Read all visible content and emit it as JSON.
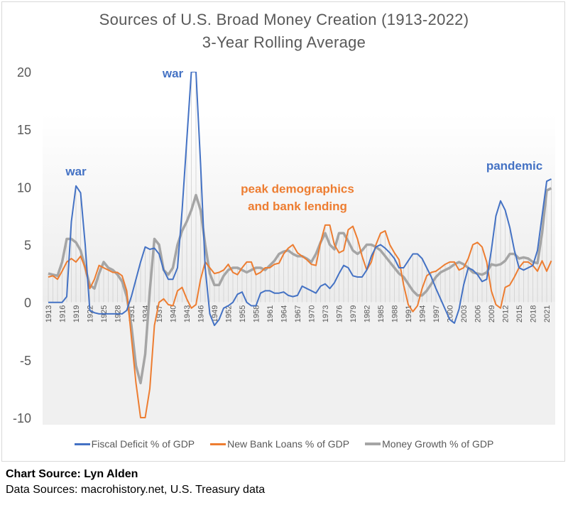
{
  "chart_data": {
    "type": "line",
    "title": "Sources of U.S. Broad Money Creation (1913-2022)",
    "subtitle": "3-Year Rolling Average",
    "xlabel": "",
    "ylabel": "",
    "ylim": [
      -10,
      20
    ],
    "yticks": [
      "20",
      "15",
      "10",
      "5",
      "0",
      "-5",
      "-10"
    ],
    "x_start": 1913,
    "x_end": 2022,
    "xtick_labels": [
      "1913",
      "1916",
      "1919",
      "1922",
      "1925",
      "1928",
      "1931",
      "1934",
      "1937",
      "1940",
      "1943",
      "1946",
      "1949",
      "1952",
      "1955",
      "1958",
      "1961",
      "1964",
      "1967",
      "1970",
      "1973",
      "1976",
      "1979",
      "1982",
      "1985",
      "1988",
      "1991",
      "1994",
      "1997",
      "2000",
      "2003",
      "2006",
      "2009",
      "2012",
      "2015",
      "2018",
      "2021"
    ],
    "legend_placement": "bottom",
    "series": [
      {
        "name": "Fiscal Deficit % of GDP",
        "color": "#4472c4",
        "width": 2,
        "values": [
          0,
          0,
          0,
          0,
          0.5,
          7,
          10.1,
          9.5,
          5,
          -0.7,
          -0.9,
          -1,
          -1,
          -1,
          -1,
          -1,
          -1,
          -0.7,
          0.5,
          2,
          3.5,
          4.8,
          4.6,
          4.7,
          4.2,
          2.8,
          2,
          2,
          3,
          8,
          14,
          20,
          20,
          12,
          3,
          -1,
          -2,
          -1.5,
          -0.5,
          -0.3,
          0,
          0.7,
          0.9,
          0,
          -0.3,
          -0.3,
          0.8,
          1,
          1,
          0.8,
          0.8,
          0.9,
          0.6,
          0.5,
          0.6,
          1.4,
          1.2,
          1,
          0.8,
          1.4,
          1.6,
          1.2,
          1.7,
          2.5,
          3.2,
          3,
          2.3,
          2.2,
          2.2,
          2.8,
          4,
          4.8,
          5,
          4.7,
          4.3,
          3.8,
          3,
          3,
          3.6,
          4.2,
          4.2,
          3.8,
          3,
          2.2,
          1.2,
          0.3,
          -0.6,
          -1.5,
          -1.8,
          -0.6,
          1.5,
          3,
          2.8,
          2.4,
          1.8,
          2,
          4.5,
          7.5,
          8.8,
          8,
          6.5,
          4.5,
          3,
          2.8,
          3,
          3.2,
          4.5,
          7.5,
          10.5,
          10.7
        ]
      },
      {
        "name": "New Bank Loans % of GDP",
        "color": "#ed7d31",
        "width": 2,
        "values": [
          2.2,
          2.3,
          2,
          2.7,
          3.5,
          3.8,
          3.5,
          4,
          3,
          1.2,
          2,
          3.2,
          3,
          2.8,
          2.6,
          2.6,
          2.3,
          1,
          -3,
          -7,
          -10,
          -10,
          -7.5,
          -2,
          0,
          0.3,
          -0.2,
          -0.3,
          1,
          1.3,
          0.3,
          -0.5,
          -0.2,
          2,
          3.5,
          3,
          2.5,
          2.6,
          2.8,
          3.3,
          2.6,
          2.4,
          3,
          3.5,
          3.5,
          2.4,
          2.6,
          3,
          3,
          3.3,
          3.4,
          4.2,
          4.7,
          5,
          4.3,
          4,
          3.7,
          3.3,
          3.2,
          5.2,
          6.7,
          6.7,
          5,
          4.3,
          4.5,
          6.3,
          6.6,
          5.5,
          4,
          2.8,
          3.5,
          5,
          6,
          6.2,
          5,
          4.3,
          3.7,
          1.5,
          -0.2,
          -0.8,
          -0.3,
          1.2,
          2.3,
          2.6,
          2.7,
          3,
          3.3,
          3.5,
          3.5,
          2.8,
          3,
          3.8,
          5,
          5.2,
          4.8,
          3.5,
          1,
          -0.2,
          -0.5,
          1.3,
          1.5,
          2.2,
          3,
          3.5,
          3.5,
          3.2,
          2.7,
          3.6,
          2.7,
          3.6
        ]
      },
      {
        "name": "Money Growth % of GDP",
        "color": "#a5a5a5",
        "width": 3.5,
        "values": [
          2.5,
          2.4,
          2.3,
          3.5,
          5.5,
          5.5,
          5.2,
          4.5,
          3,
          1.5,
          1.2,
          2.5,
          3.5,
          3,
          2.8,
          2.4,
          1.8,
          0.5,
          -2,
          -5.5,
          -7,
          -4.5,
          1,
          5.5,
          5,
          2.8,
          2.4,
          3,
          5,
          6.2,
          7,
          8,
          9.3,
          8,
          5,
          2.5,
          1.5,
          1.5,
          2.3,
          2.8,
          3,
          3,
          2.8,
          2.6,
          2.8,
          3,
          3,
          2.8,
          3.2,
          3.6,
          4.2,
          4.4,
          4.5,
          4.2,
          4,
          4,
          3.8,
          3.5,
          4.2,
          5.2,
          6,
          5,
          4.6,
          6,
          6,
          5.3,
          4.5,
          4.2,
          4.5,
          5,
          5,
          4.8,
          4.5,
          4,
          3.5,
          3,
          2.5,
          2.2,
          1.6,
          1,
          0.6,
          0.6,
          1,
          1.6,
          2.2,
          2.6,
          2.8,
          3,
          3.3,
          3.5,
          3.3,
          3,
          2.6,
          2.5,
          2.4,
          2.6,
          3.3,
          3.2,
          3.3,
          3.6,
          4.2,
          4.2,
          3.8,
          3.9,
          3.8,
          3.5,
          3.4,
          6,
          9.7,
          9.9
        ]
      }
    ],
    "annotations": [
      {
        "text": "war",
        "x": 1919,
        "y": 11,
        "color": "#4472c4"
      },
      {
        "text": "war",
        "x": 1940,
        "y": 19.5,
        "color": "#4472c4"
      },
      {
        "text": "pandemic",
        "x": 2014,
        "y": 11.5,
        "color": "#4472c4"
      },
      {
        "text": "peak demographics",
        "x": 1967,
        "y": 9.5,
        "color": "#ed7d31"
      },
      {
        "text": "and bank lending",
        "x": 1967,
        "y": 8,
        "color": "#ed7d31"
      }
    ]
  },
  "footer": {
    "chart_source": "Chart Source: Lyn Alden",
    "data_sources": "Data Sources: macrohistory.net, U.S. Treasury data"
  }
}
